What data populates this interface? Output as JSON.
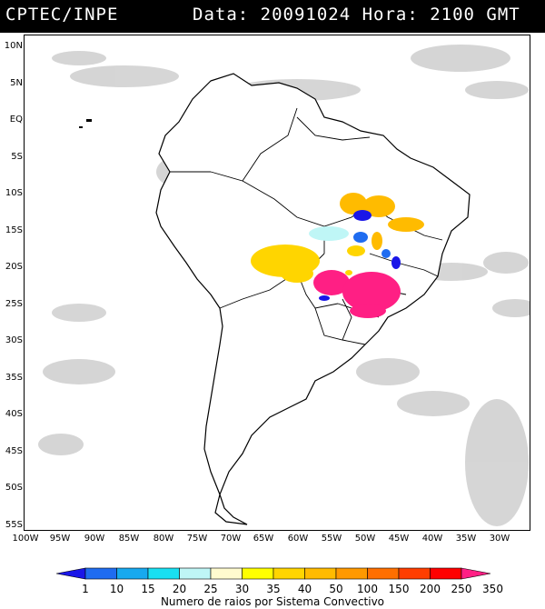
{
  "header": {
    "organization": "CPTEC/INPE",
    "info": "Data: 20091024 Hora: 2100 GMT"
  },
  "map": {
    "lat_labels": [
      "10N",
      "5N",
      "EQ",
      "5S",
      "10S",
      "15S",
      "20S",
      "25S",
      "30S",
      "35S",
      "40S",
      "45S",
      "50S",
      "55S"
    ],
    "lon_labels": [
      "100W",
      "95W",
      "90W",
      "85W",
      "80W",
      "75W",
      "70W",
      "65W",
      "60W",
      "55W",
      "50W",
      "45W",
      "40W",
      "35W",
      "30W"
    ]
  },
  "legend": {
    "values": [
      "1",
      "10",
      "15",
      "20",
      "25",
      "30",
      "35",
      "40",
      "50",
      "100",
      "150",
      "200",
      "250",
      "350"
    ],
    "colors": [
      "#1a16e8",
      "#1f6cf0",
      "#17a9ef",
      "#19e0f2",
      "#bff6f6",
      "#fffbcf",
      "#ffff00",
      "#ffd500",
      "#ffbb00",
      "#ff9900",
      "#ff6f00",
      "#ff3e00",
      "#ff0000",
      "#ff1f84"
    ],
    "title": "Numero de raios por Sistema Convectivo"
  }
}
